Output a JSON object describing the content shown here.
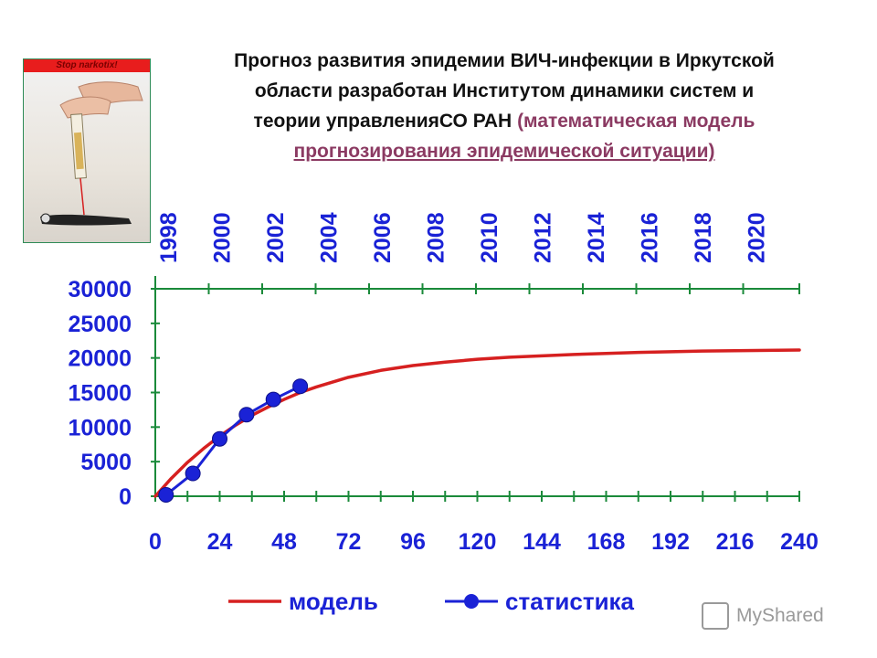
{
  "poster": {
    "banner_text": "Stop narkotix!"
  },
  "title": {
    "line1": "Прогноз развития эпидемии ВИЧ-инфекции в Иркутской",
    "line2": "области разработан Институтом динамики систем и",
    "line3_main": "теории управленияСО РАН ",
    "line3_sub": "(математическая модель",
    "line4_sub": "прогнозирования эпидемической ситуации)"
  },
  "chart_data": {
    "type": "line",
    "x_bottom_label_ticks": [
      "0",
      "24",
      "48",
      "72",
      "96",
      "120",
      "144",
      "168",
      "192",
      "216",
      "240"
    ],
    "x_top_year_ticks": [
      "1998",
      "2000",
      "2002",
      "2004",
      "2006",
      "2008",
      "2010",
      "2012",
      "2014",
      "2016",
      "2018",
      "2020"
    ],
    "y_ticks": [
      "0",
      "5000",
      "10000",
      "15000",
      "20000",
      "25000",
      "30000"
    ],
    "xlim": [
      0,
      240
    ],
    "ylim": [
      0,
      30000
    ],
    "series": [
      {
        "name": "модель",
        "color": "#d62020",
        "marker": "none",
        "x": [
          0,
          6,
          12,
          18,
          24,
          30,
          36,
          42,
          48,
          54,
          60,
          72,
          84,
          96,
          108,
          120,
          132,
          144,
          156,
          168,
          180,
          192,
          204,
          216,
          228,
          240
        ],
        "y": [
          0,
          2600,
          4900,
          6900,
          8700,
          10300,
          11700,
          12900,
          14000,
          15000,
          15800,
          17200,
          18200,
          18900,
          19400,
          19800,
          20100,
          20300,
          20500,
          20650,
          20800,
          20900,
          21000,
          21050,
          21100,
          21150
        ]
      },
      {
        "name": "статистика",
        "color": "#1a22d6",
        "marker": "circle",
        "x": [
          4,
          14,
          24,
          34,
          44,
          54
        ],
        "y": [
          200,
          3300,
          8300,
          11800,
          14000,
          15900
        ]
      }
    ],
    "legend": {
      "position": "bottom",
      "entries": [
        "модель",
        "статистика"
      ]
    },
    "grid": false
  },
  "watermark": {
    "text": "MyShared"
  },
  "colors": {
    "axis": "#1a8a3a",
    "title_sub": "#8b3a62"
  }
}
